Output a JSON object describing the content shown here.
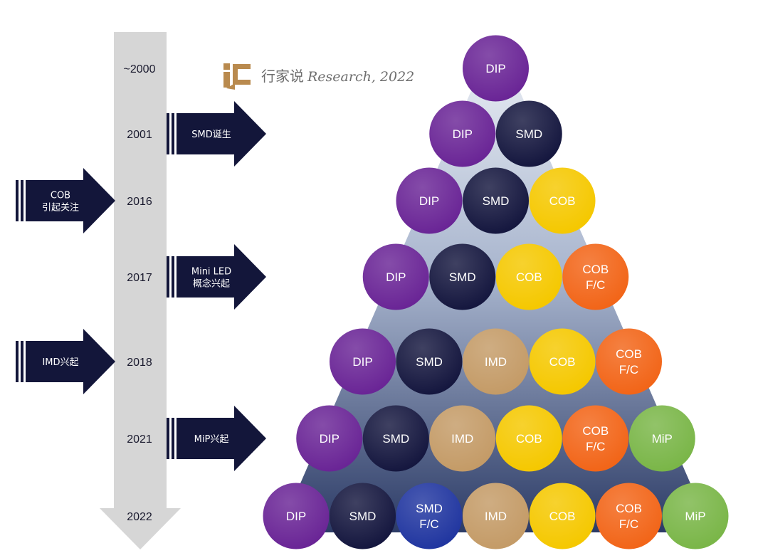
{
  "watermark": {
    "logo_text": "ic",
    "cn_text": "行家说",
    "en_text": "Research, 2022"
  },
  "colors": {
    "timeline": "#d6d6d6",
    "arrow": "#13163a",
    "pyramid_top": "#dfe5ee",
    "pyramid_bottom": "#2f3f6b",
    "DIP": "#6a2596",
    "SMD": "#15173f",
    "SMD F/C": "#2136a0",
    "IMD": "#c49b67",
    "COB": "#f5c800",
    "COB F/C": "#f26518",
    "MiP": "#7ab648",
    "logo": "#b98a4e"
  },
  "timeline": {
    "years": [
      "~2000",
      "2001",
      "2016",
      "2017",
      "2018",
      "2021",
      "2022"
    ]
  },
  "events": [
    {
      "side": "right",
      "row": 1,
      "lines": [
        "SMD诞生"
      ]
    },
    {
      "side": "left",
      "row": 2,
      "lines": [
        "COB",
        "引起关注"
      ]
    },
    {
      "side": "right",
      "row": 3,
      "lines": [
        "Mini LED",
        "概念兴起"
      ]
    },
    {
      "side": "left",
      "row": 4,
      "lines": [
        "IMD兴起"
      ]
    },
    {
      "side": "right",
      "row": 5,
      "lines": [
        "MiP兴起"
      ]
    }
  ],
  "pyramid": {
    "rows": [
      [
        "DIP"
      ],
      [
        "DIP",
        "SMD"
      ],
      [
        "DIP",
        "SMD",
        "COB"
      ],
      [
        "DIP",
        "SMD",
        "COB",
        "COB F/C"
      ],
      [
        "DIP",
        "SMD",
        "IMD",
        "COB",
        "COB F/C"
      ],
      [
        "DIP",
        "SMD",
        "IMD",
        "COB",
        "COB F/C",
        "MiP"
      ],
      [
        "DIP",
        "SMD",
        "SMD F/C",
        "IMD",
        "COB",
        "COB F/C",
        "MiP"
      ]
    ]
  }
}
